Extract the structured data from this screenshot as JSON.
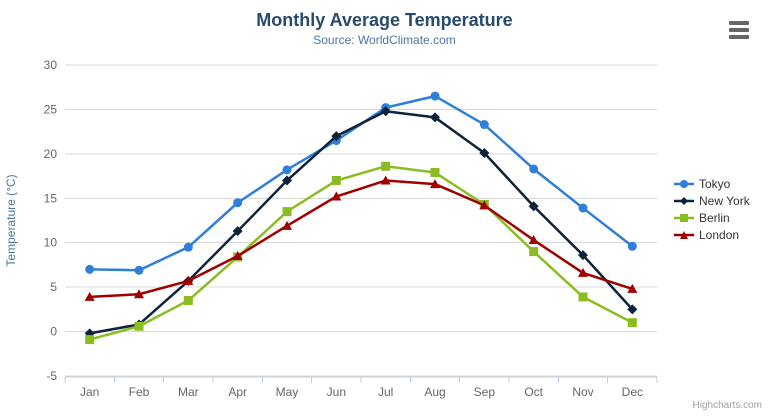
{
  "header": {
    "title": "Monthly Average Temperature",
    "subtitle": "Source: WorldClimate.com"
  },
  "credit": {
    "label": "Highcharts.com"
  },
  "colors": {
    "title": "#274b6d",
    "subtitle": "#4d759e",
    "axis_label": "#666666",
    "axis_title": "#4d759e",
    "gridline": "#d8d8d8",
    "axis_line": "#c0d0e0",
    "legend_text": "#333333",
    "credit_text": "#a0a0a0",
    "menu_icon": "#666666"
  },
  "chart_data": {
    "type": "line",
    "title": "Monthly Average Temperature",
    "subtitle": "Source: WorldClimate.com",
    "categories": [
      "Jan",
      "Feb",
      "Mar",
      "Apr",
      "May",
      "Jun",
      "Jul",
      "Aug",
      "Sep",
      "Oct",
      "Nov",
      "Dec"
    ],
    "series": [
      {
        "name": "Tokyo",
        "color": "#2f7ed8",
        "symbol": "circle",
        "values": [
          7.0,
          6.9,
          9.5,
          14.5,
          18.2,
          21.5,
          25.2,
          26.5,
          23.3,
          18.3,
          13.9,
          9.6
        ]
      },
      {
        "name": "New York",
        "color": "#0d233a",
        "symbol": "diamond",
        "values": [
          -0.2,
          0.8,
          5.7,
          11.3,
          17.0,
          22.0,
          24.8,
          24.1,
          20.1,
          14.1,
          8.6,
          2.5
        ]
      },
      {
        "name": "Berlin",
        "color": "#8bbc21",
        "symbol": "square",
        "values": [
          -0.9,
          0.6,
          3.5,
          8.4,
          13.5,
          17.0,
          18.6,
          17.9,
          14.3,
          9.0,
          3.9,
          1.0
        ]
      },
      {
        "name": "London",
        "color": "#a00000",
        "symbol": "triangle",
        "values": [
          3.9,
          4.2,
          5.7,
          8.5,
          11.9,
          15.2,
          17.0,
          16.6,
          14.2,
          10.3,
          6.6,
          4.8
        ]
      }
    ],
    "xlabel": "",
    "ylabel": "Temperature (°C)",
    "ylim": [
      -5,
      30
    ],
    "ytick_step": 5,
    "yticks": [
      -5,
      0,
      5,
      10,
      15,
      20,
      25,
      30
    ],
    "grid": true,
    "legend_position": "right"
  }
}
